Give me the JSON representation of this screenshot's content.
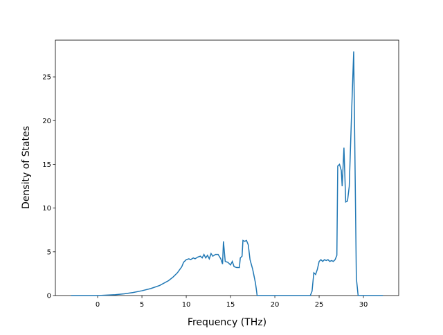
{
  "chart_data": {
    "type": "line",
    "xlabel": "Frequency (THz)",
    "ylabel": "Density of States",
    "x": [
      -3,
      0,
      1,
      2,
      3,
      4,
      5,
      6,
      7,
      8,
      8.5,
      9,
      9.5,
      9.7,
      10,
      10.3,
      10.5,
      10.8,
      11,
      11.3,
      11.6,
      11.8,
      12,
      12.2,
      12.4,
      12.6,
      12.8,
      13,
      13.3,
      13.6,
      13.9,
      14.1,
      14.2,
      14.4,
      14.7,
      15,
      15.2,
      15.4,
      15.7,
      16,
      16.1,
      16.3,
      16.4,
      16.6,
      16.8,
      17,
      17.2,
      17.5,
      17.8,
      17.9,
      18,
      24,
      24.2,
      24.4,
      24.6,
      24.8,
      25,
      25.2,
      25.4,
      25.6,
      25.8,
      26,
      26.2,
      26.4,
      26.6,
      26.8,
      27,
      27.1,
      27.3,
      27.5,
      27.6,
      27.8,
      28,
      28.2,
      28.4,
      28.7,
      28.9,
      29.2,
      29.4,
      32.2
    ],
    "series": [
      {
        "color": "#1f77b4",
        "values": [
          0,
          0,
          0.05,
          0.1,
          0.2,
          0.35,
          0.55,
          0.8,
          1.15,
          1.7,
          2.1,
          2.6,
          3.3,
          3.8,
          4.1,
          4.2,
          4.1,
          4.3,
          4.2,
          4.4,
          4.5,
          4.3,
          4.7,
          4.3,
          4.6,
          4.2,
          4.8,
          4.5,
          4.7,
          4.7,
          4.2,
          3.6,
          6.2,
          3.9,
          3.8,
          3.5,
          3.9,
          3.3,
          3.2,
          3.2,
          4.3,
          4.5,
          6.3,
          6.2,
          6.3,
          5.8,
          4.1,
          3.0,
          1.5,
          0.8,
          0,
          0,
          0.5,
          2.6,
          2.4,
          3.0,
          3.9,
          4.1,
          3.9,
          4.1,
          4.0,
          4.1,
          3.9,
          4.0,
          3.9,
          4.1,
          4.6,
          14.8,
          15.0,
          14.3,
          12.5,
          16.9,
          10.7,
          10.8,
          12.5,
          22.0,
          27.9,
          2.0,
          0,
          0
        ]
      }
    ],
    "xlim": [
      -4.77,
      33.98
    ],
    "ylim": [
      0,
      29.2
    ],
    "xticks": [
      0,
      5,
      10,
      15,
      20,
      25,
      30
    ],
    "yticks": [
      0,
      5,
      10,
      15,
      20,
      25
    ]
  }
}
